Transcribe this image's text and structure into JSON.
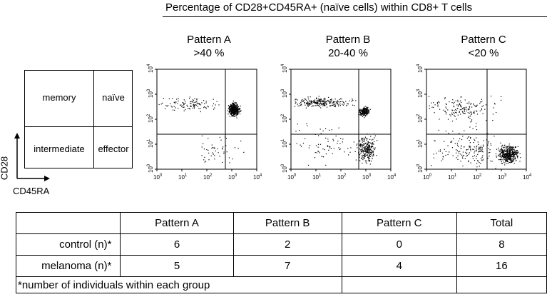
{
  "figure": {
    "header_title": "Percentage of CD28+CD45RA+ (naïve cells) within CD8+ T cells",
    "patterns": [
      {
        "name": "Pattern A",
        "range": ">40 %"
      },
      {
        "name": "Pattern B",
        "range": "20-40 %"
      },
      {
        "name": "Pattern C",
        "range": "<20 %"
      }
    ],
    "legend": {
      "top_left": "memory",
      "top_right": "naïve",
      "bottom_left": "intermediate",
      "bottom_right": "effector",
      "y_axis": "CD28",
      "x_axis": "CD45RA"
    },
    "tick_labels": [
      "10",
      "10",
      "10",
      "10",
      "10"
    ],
    "tick_exponents": [
      "0",
      "1",
      "2",
      "3",
      "4"
    ]
  },
  "table": {
    "columns": [
      "",
      "Pattern A",
      "Pattern B",
      "Pattern C",
      "Total"
    ],
    "rows": [
      {
        "label": "control (n)*",
        "values": [
          "6",
          "2",
          "0",
          "8"
        ]
      },
      {
        "label": "melanoma (n)*",
        "values": [
          "5",
          "7",
          "4",
          "16"
        ]
      }
    ],
    "footnote": "*number of individuals within each group"
  }
}
